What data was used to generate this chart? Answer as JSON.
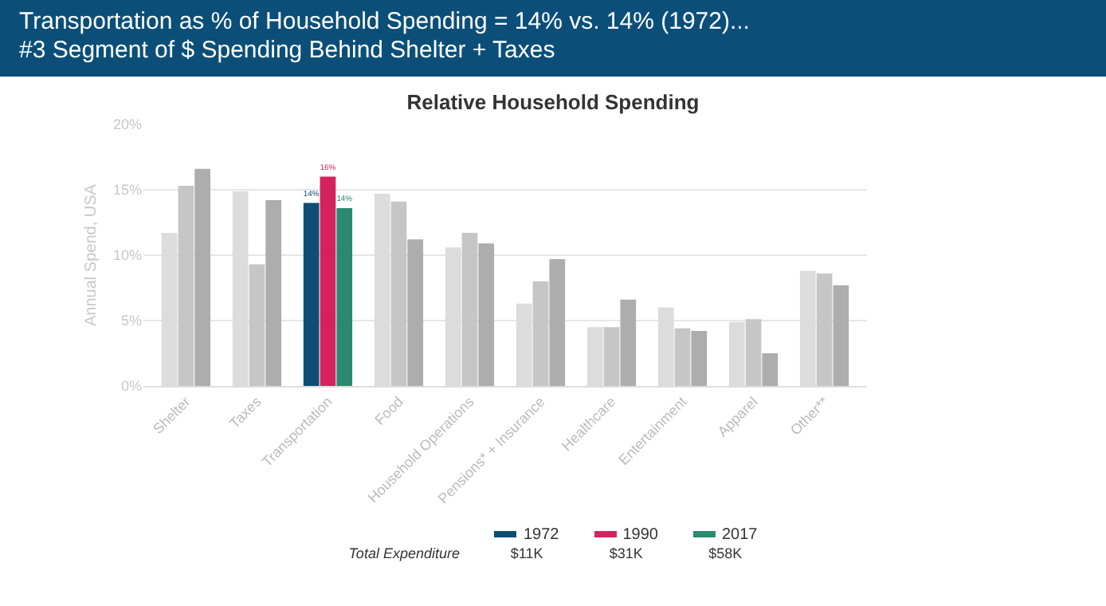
{
  "chart_data": {
    "type": "bar",
    "title": "Transportation as % of Household Spending = 14% vs. 14% (1972)...\n#3 Segment of $ Spending Behind Shelter + Taxes",
    "subtitle": "Relative Household Spending",
    "ylabel": "Annual Spend, USA",
    "categories": [
      "Shelter",
      "Taxes",
      "Transportation",
      "Food",
      "Household Operations",
      "Pensions* + Insurance",
      "Healthcare",
      "Entertainment",
      "Apparel",
      "Other**"
    ],
    "series": [
      {
        "name": "1972",
        "color": "#0e4d74",
        "colors": [
          "#dcdcdc",
          "#dcdcdc",
          "#0e4d74",
          "#dcdcdc",
          "#dcdcdc",
          "#dcdcdc",
          "#dcdcdc",
          "#dcdcdc",
          "#dcdcdc",
          "#dcdcdc"
        ],
        "values": [
          11.7,
          14.9,
          14,
          14.7,
          10.6,
          6.3,
          4.5,
          6.0,
          4.9,
          8.8
        ],
        "value_labels": [
          null,
          null,
          "14%",
          null,
          null,
          null,
          null,
          null,
          null,
          null
        ]
      },
      {
        "name": "1990",
        "color": "#d2235f",
        "colors": [
          "#c6c6c6",
          "#c6c6c6",
          "#d2235f",
          "#c6c6c6",
          "#c6c6c6",
          "#c6c6c6",
          "#c6c6c6",
          "#c6c6c6",
          "#c6c6c6",
          "#c6c6c6"
        ],
        "values": [
          15.3,
          9.3,
          16,
          14.1,
          11.7,
          8.0,
          4.5,
          4.4,
          5.1,
          8.6
        ],
        "value_labels": [
          null,
          null,
          "16%",
          null,
          null,
          null,
          null,
          null,
          null,
          null
        ]
      },
      {
        "name": "2017",
        "color": "#2a8a70",
        "colors": [
          "#adadad",
          "#adadad",
          "#2a8a70",
          "#adadad",
          "#adadad",
          "#adadad",
          "#adadad",
          "#adadad",
          "#adadad",
          "#adadad"
        ],
        "values": [
          16.6,
          14.2,
          13.6,
          11.2,
          10.9,
          9.7,
          6.6,
          4.2,
          2.5,
          7.7
        ],
        "value_labels": [
          null,
          null,
          "14%",
          null,
          null,
          null,
          null,
          null,
          null,
          null
        ]
      }
    ],
    "ylim": [
      0,
      20
    ],
    "yticks": [
      {
        "value": 0,
        "label": "0%"
      },
      {
        "value": 5,
        "label": "5%"
      },
      {
        "value": 10,
        "label": "10%"
      },
      {
        "value": 15,
        "label": "15%"
      },
      {
        "value": 20,
        "label": "20%"
      }
    ],
    "grid": "y",
    "legend": "bottom",
    "annotations": [
      "Total Expenditure",
      "$11K",
      "$31K",
      "$58K"
    ]
  }
}
